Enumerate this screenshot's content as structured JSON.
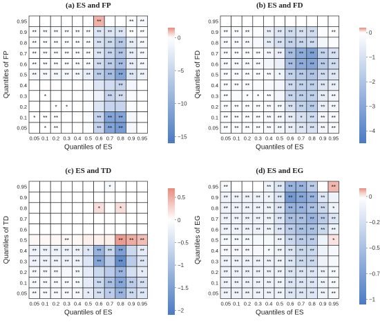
{
  "chart_data": [
    {
      "type": "heatmap",
      "title": "(a) ES and FP",
      "xlabel": "Quantiles of ES",
      "ylabel": "Quantiles of FP",
      "x_ticks": [
        "0.05",
        "0.1",
        "0.2",
        "0.3",
        "0.4",
        "0.5",
        "0.6",
        "0.7",
        "0.8",
        "0.9",
        "0.95"
      ],
      "y_ticks": [
        "0.95",
        "0.9",
        "0.8",
        "0.7",
        "0.6",
        "0.5",
        "0.4",
        "0.3",
        "0.2",
        "0.1",
        "0.05"
      ],
      "colorbar": {
        "ticks": [
          0,
          -5,
          -10,
          -15
        ],
        "min": -16,
        "max": 1.5
      },
      "values": [
        [
          0,
          0,
          0,
          0,
          0,
          0,
          1.0,
          0,
          0,
          -0.5,
          -1.0
        ],
        [
          -0.3,
          -0.3,
          -0.3,
          -0.3,
          -0.3,
          -0.3,
          -3,
          -3,
          -3,
          -0.3,
          -0.3
        ],
        [
          -0.3,
          -0.3,
          -0.3,
          -0.3,
          -0.3,
          -0.5,
          -3.5,
          -4.5,
          -6.5,
          -2,
          -1
        ],
        [
          -0.3,
          -0.3,
          -0.3,
          -0.3,
          -0.3,
          -0.5,
          -3,
          -5,
          -7,
          -2,
          -1
        ],
        [
          -0.3,
          -0.3,
          -0.3,
          -0.3,
          -0.3,
          -0.5,
          -4,
          -6,
          -8,
          -2,
          -1
        ],
        [
          -1,
          -1,
          -1,
          -1,
          -1,
          -2,
          -6,
          -8,
          -11,
          -3,
          -1.5
        ],
        [
          0,
          0,
          0,
          0,
          0,
          -0.5,
          -3,
          -4,
          -5,
          -1,
          0
        ],
        [
          0,
          0,
          0,
          0,
          0,
          -0.3,
          -1.5,
          -5,
          -4,
          -0.5,
          0
        ],
        [
          0,
          0,
          0,
          0,
          0,
          -0.3,
          -3,
          -5,
          -5,
          -0.5,
          0
        ],
        [
          0,
          0,
          0,
          0,
          0,
          -0.3,
          -5,
          -11,
          -11,
          -1,
          0
        ],
        [
          0,
          0,
          0,
          0,
          0,
          -0.3,
          -5,
          -11,
          -12,
          -1,
          0
        ]
      ],
      "labels": [
        [
          "",
          "",
          "",
          "",
          "",
          "",
          "**",
          "",
          "",
          "**",
          "**"
        ],
        [
          "**",
          "**",
          "**",
          "**",
          "**",
          "**",
          "**",
          "**",
          "**",
          "**",
          "**"
        ],
        [
          "**",
          "**",
          "**",
          "**",
          "**",
          "**",
          "**",
          "**",
          "**",
          "**",
          "**"
        ],
        [
          "**",
          "**",
          "**",
          "**",
          "**",
          "**",
          "**",
          "**",
          "**",
          "**",
          "**"
        ],
        [
          "**",
          "**",
          "**",
          "**",
          "**",
          "**",
          "**",
          "**",
          "**",
          "**",
          "**"
        ],
        [
          "**",
          "**",
          "**",
          "**",
          "**",
          "**",
          "**",
          "**",
          "**",
          "**",
          "**"
        ],
        [
          "",
          "",
          "",
          "",
          "",
          "",
          "",
          "",
          "**",
          "",
          ""
        ],
        [
          "",
          "*",
          "",
          "",
          "",
          "",
          "",
          "**",
          "**",
          "",
          ""
        ],
        [
          "",
          "",
          "*",
          "*",
          "",
          "",
          "",
          "",
          "",
          "",
          ""
        ],
        [
          "*",
          "**",
          "**",
          "",
          "",
          "",
          "**",
          "**",
          "**",
          "",
          ""
        ],
        [
          "",
          "*",
          "**",
          "",
          "",
          "",
          "**",
          "**",
          "**",
          "",
          ""
        ]
      ]
    },
    {
      "type": "heatmap",
      "title": "(b) ES and FD",
      "xlabel": "Quantiles of ES",
      "ylabel": "Quantiles of FD",
      "x_ticks": [
        "0.05",
        "0.1",
        "0.2",
        "0.3",
        "0.4",
        "0.5",
        "0.6",
        "0.7",
        "0.8",
        "0.9",
        "0.95"
      ],
      "y_ticks": [
        "0.95",
        "0.9",
        "0.8",
        "0.7",
        "0.6",
        "0.5",
        "0.4",
        "0.3",
        "0.2",
        "0.1",
        "0.05"
      ],
      "colorbar": {
        "ticks": [
          0,
          -1,
          -2,
          -3,
          -4
        ],
        "min": -4.5,
        "max": 0.2
      },
      "values": [
        [
          0,
          0,
          0,
          0,
          0,
          0,
          0,
          0,
          0,
          0,
          0
        ],
        [
          -0.1,
          -0.1,
          -0.1,
          -0.1,
          -0.5,
          -0.8,
          -1.2,
          -1.0,
          -1.2,
          -0.1,
          0
        ],
        [
          -0.2,
          -0.2,
          -0.2,
          -0.2,
          -0.6,
          -1.0,
          -1.5,
          -1.4,
          -1.2,
          -0.3,
          -0.1
        ],
        [
          -0.1,
          -0.1,
          -0.1,
          -0.1,
          -0.3,
          -0.5,
          -2.2,
          -2.8,
          -3.2,
          -1.5,
          -1.0
        ],
        [
          -0.2,
          -0.2,
          -0.2,
          -0.2,
          -0.3,
          -0.5,
          -2.2,
          -2.8,
          -3.0,
          -1.8,
          -1.2
        ],
        [
          -0.1,
          -0.1,
          -0.1,
          -0.1,
          -0.2,
          -0.4,
          -1.5,
          -1.8,
          -2.0,
          -1.2,
          -0.8
        ],
        [
          -0.1,
          -0.1,
          -0.1,
          -0.1,
          -0.2,
          -0.3,
          -1.2,
          -1.5,
          -1.6,
          -0.8,
          -0.5
        ],
        [
          -0.1,
          -0.1,
          -0.1,
          -0.1,
          -0.1,
          -0.3,
          -1.4,
          -1.6,
          -1.6,
          -0.6,
          -0.3
        ],
        [
          -0.1,
          -0.1,
          -0.1,
          -0.1,
          -0.2,
          -0.3,
          -1.0,
          -1.5,
          -1.8,
          -0.5,
          -0.3
        ],
        [
          -0.1,
          -0.1,
          -0.1,
          -0.1,
          -0.2,
          -0.3,
          -0.6,
          -1.0,
          -1.2,
          -0.3,
          -0.2
        ],
        [
          -0.1,
          -0.1,
          -0.1,
          -0.1,
          -0.2,
          -0.3,
          -0.5,
          -0.8,
          -1.0,
          -0.3,
          -0.2
        ]
      ],
      "labels": [
        [
          "",
          "",
          "",
          "",
          "",
          "",
          "",
          "",
          "",
          "",
          ""
        ],
        [
          "**",
          "**",
          "**",
          "",
          "**",
          "**",
          "**",
          "**",
          "**",
          "",
          "**"
        ],
        [
          "**",
          "**",
          "**",
          "",
          "**",
          "**",
          "**",
          "**",
          "**",
          "",
          ""
        ],
        [
          "**",
          "**",
          "**",
          "**",
          "**",
          "**",
          "**",
          "**",
          "**",
          "**",
          "**"
        ],
        [
          "**",
          "**",
          "**",
          "**",
          "",
          "",
          "**",
          "**",
          "**",
          "**",
          "**"
        ],
        [
          "**",
          "**",
          "**",
          "**",
          "**",
          "*",
          "**",
          "**",
          "**",
          "**",
          "**"
        ],
        [
          "**",
          "**",
          "**",
          "",
          "",
          "",
          "**",
          "**",
          "**",
          "**",
          "**"
        ],
        [
          "**",
          "",
          "*",
          "*",
          "**",
          "",
          "**",
          "**",
          "**",
          "**",
          "**"
        ],
        [
          "**",
          "**",
          "**",
          "**",
          "**",
          "**",
          "**",
          "**",
          "**",
          "**",
          "**"
        ],
        [
          "**",
          "**",
          "**",
          "**",
          "**",
          "**",
          "**",
          "*",
          "**",
          "**",
          "**"
        ],
        [
          "**",
          "**",
          "**",
          "**",
          "**",
          "**",
          "**",
          "**",
          "**",
          "**",
          "**"
        ]
      ]
    },
    {
      "type": "heatmap",
      "title": "(c) ES and TD",
      "xlabel": "Quantiles of ES",
      "ylabel": "Quantiles of TD",
      "x_ticks": [
        "0.05",
        "0.1",
        "0.2",
        "0.3",
        "0.4",
        "0.5",
        "0.6",
        "0.7",
        "0.8",
        "0.9",
        "0.95"
      ],
      "y_ticks": [
        "0.95",
        "0.9",
        "0.8",
        "0.7",
        "0.6",
        "0.5",
        "0.4",
        "0.3",
        "0.2",
        "0.1",
        "0.05"
      ],
      "colorbar": {
        "ticks": [
          0.5,
          0,
          -0.5,
          -1.0,
          -1.5,
          -2.0
        ],
        "min": -2.1,
        "max": 0.7
      },
      "values": [
        [
          0,
          0,
          0,
          0,
          0,
          0,
          0,
          -0.1,
          0,
          0,
          0
        ],
        [
          0,
          0,
          0,
          0,
          0,
          0,
          0,
          0,
          0,
          0,
          0
        ],
        [
          0,
          0,
          0,
          0,
          0,
          0,
          0.2,
          0,
          0.2,
          0,
          0
        ],
        [
          0,
          0,
          0,
          0,
          0,
          0,
          0,
          0,
          0,
          0,
          0
        ],
        [
          0,
          0,
          0,
          0,
          0,
          0,
          0,
          0,
          0,
          0,
          0
        ],
        [
          0.05,
          0.05,
          0.05,
          0.05,
          0.05,
          0.1,
          0.1,
          0.1,
          0.6,
          0.5,
          0.4
        ],
        [
          -0.2,
          -0.2,
          -0.2,
          -0.2,
          -0.2,
          -0.4,
          -1.2,
          -0.6,
          -1.5,
          -0.6,
          -0.3
        ],
        [
          -0.2,
          -0.2,
          -0.2,
          -0.2,
          -0.2,
          -0.4,
          -1.4,
          -0.8,
          -1.8,
          -0.8,
          -0.4
        ],
        [
          -0.1,
          -0.1,
          -0.1,
          -0.1,
          -0.1,
          -0.3,
          -0.6,
          -0.8,
          -1.2,
          -0.5,
          -0.3
        ],
        [
          -0.1,
          -0.1,
          -0.1,
          -0.1,
          -0.1,
          -0.3,
          -0.6,
          -1.0,
          -1.4,
          -0.8,
          -0.5
        ],
        [
          -0.1,
          -0.1,
          -0.1,
          -0.1,
          -0.1,
          -0.3,
          -0.5,
          -0.8,
          -1.2,
          -0.6,
          -0.4
        ]
      ],
      "labels": [
        [
          "",
          "",
          "",
          "",
          "",
          "",
          "",
          "*",
          "",
          "",
          ""
        ],
        [
          "",
          "",
          "",
          "",
          "",
          "",
          "",
          "",
          "",
          "",
          ""
        ],
        [
          "",
          "",
          "",
          "",
          "",
          "",
          "*",
          "",
          "*",
          "",
          ""
        ],
        [
          "",
          "",
          "",
          "",
          "",
          "",
          "",
          "",
          "",
          "",
          ""
        ],
        [
          "",
          "",
          "",
          "",
          "",
          "",
          "",
          "",
          "",
          "",
          ""
        ],
        [
          "",
          "",
          "",
          "**",
          "",
          "",
          "",
          "",
          "**",
          "**",
          "**"
        ],
        [
          "**",
          "**",
          "**",
          "**",
          "**",
          "*",
          "**",
          "**",
          "**",
          "",
          "**"
        ],
        [
          "**",
          "**",
          "**",
          "**",
          "**",
          "",
          "**",
          "",
          "**",
          "",
          "**"
        ],
        [
          "**",
          "**",
          "**",
          "",
          "**",
          "",
          "",
          "",
          "**",
          "",
          "*"
        ],
        [
          "**",
          "**",
          "**",
          "**",
          "**",
          "",
          "**",
          "**",
          "**",
          "**",
          "**"
        ],
        [
          "**",
          "**",
          "**",
          "**",
          "**",
          "*",
          "**",
          "*",
          "**",
          "**",
          "**"
        ]
      ]
    },
    {
      "type": "heatmap",
      "title": "(d) ES and EG",
      "xlabel": "Quantiles of ES",
      "ylabel": "Quantiles of EG",
      "x_ticks": [
        "0.05",
        "0.1",
        "0.2",
        "0.3",
        "0.4",
        "0.5",
        "0.6",
        "0.7",
        "0.8",
        "0.9",
        "0.95"
      ],
      "y_ticks": [
        "0.95",
        "0.9",
        "0.8",
        "0.7",
        "0.6",
        "0.5",
        "0.4",
        "0.3",
        "0.2",
        "0.1",
        "0.05"
      ],
      "colorbar": {
        "ticks": [
          0.0,
          -0.25,
          -0.5,
          -0.75,
          -1.0
        ],
        "min": -1.05,
        "max": 0.08
      },
      "values": [
        [
          -0.05,
          0,
          0,
          0,
          -0.1,
          -0.2,
          -0.6,
          -0.6,
          -0.4,
          0,
          0.05
        ],
        [
          -0.1,
          -0.1,
          -0.1,
          -0.1,
          -0.1,
          -0.2,
          -0.8,
          -0.7,
          -0.6,
          -0.2,
          -0.1
        ],
        [
          -0.1,
          -0.1,
          -0.1,
          -0.1,
          -0.1,
          -0.2,
          -0.6,
          -0.6,
          -0.5,
          -0.3,
          -0.1
        ],
        [
          -0.1,
          -0.1,
          -0.1,
          -0.1,
          -0.1,
          -0.2,
          -0.5,
          -0.5,
          -0.6,
          -0.4,
          -0.2
        ],
        [
          -0.1,
          -0.1,
          -0.1,
          -0.1,
          -0.1,
          -0.2,
          -0.4,
          -0.5,
          -0.5,
          -0.3,
          -0.1
        ],
        [
          -0.05,
          -0.05,
          -0.05,
          -0.05,
          -0.05,
          -0.1,
          -0.3,
          -0.4,
          -0.4,
          -0.1,
          0.02
        ],
        [
          -0.05,
          -0.05,
          -0.05,
          -0.05,
          -0.05,
          -0.1,
          -0.2,
          -0.3,
          -0.3,
          -0.1,
          -0.05
        ],
        [
          -0.1,
          -0.1,
          -0.1,
          -0.1,
          -0.1,
          -0.1,
          -0.2,
          -0.3,
          -0.3,
          -0.1,
          -0.05
        ],
        [
          -0.1,
          -0.1,
          -0.1,
          -0.1,
          -0.1,
          -0.1,
          -0.2,
          -0.2,
          -0.2,
          -0.1,
          -0.05
        ],
        [
          -0.1,
          -0.1,
          -0.1,
          -0.1,
          -0.1,
          -0.1,
          -0.2,
          -0.2,
          -0.2,
          -0.1,
          -0.05
        ],
        [
          -0.1,
          -0.1,
          -0.1,
          -0.1,
          -0.1,
          -0.1,
          -0.2,
          -0.2,
          -0.2,
          -0.1,
          -0.05
        ]
      ],
      "labels": [
        [
          "**",
          "",
          "",
          "",
          "**",
          "**",
          "**",
          "**",
          "**",
          "",
          "**"
        ],
        [
          "**",
          "**",
          "**",
          "**",
          "*",
          "**",
          "**",
          "**",
          "**",
          "**",
          ""
        ],
        [
          "**",
          "**",
          "**",
          "**",
          "**",
          "**",
          "**",
          "**",
          "**",
          "**",
          "*"
        ],
        [
          "**",
          "**",
          "**",
          "**",
          "**",
          "**",
          "**",
          "**",
          "**",
          "**",
          "**"
        ],
        [
          "**",
          "**",
          "**",
          "**",
          "**",
          "**",
          "**",
          "**",
          "**",
          "**",
          "**"
        ],
        [
          "**",
          "**",
          "**",
          "",
          "",
          "**",
          "**",
          "**",
          "**",
          "",
          "*"
        ],
        [
          "**",
          "**",
          "**",
          "",
          "*",
          "**",
          "**",
          "**",
          "**",
          "",
          ""
        ],
        [
          "**",
          "**",
          "**",
          "**",
          "**",
          "**",
          "**",
          "**",
          "**",
          "",
          ""
        ],
        [
          "**",
          "**",
          "**",
          "**",
          "**",
          "**",
          "**",
          "**",
          "**",
          "**",
          "**"
        ],
        [
          "**",
          "**",
          "**",
          "**",
          "**",
          "**",
          "**",
          "**",
          "**",
          "**",
          "**"
        ],
        [
          "**",
          "**",
          "**",
          "**",
          "**",
          "**",
          "**",
          "**",
          "**",
          "**",
          "**"
        ]
      ]
    }
  ]
}
